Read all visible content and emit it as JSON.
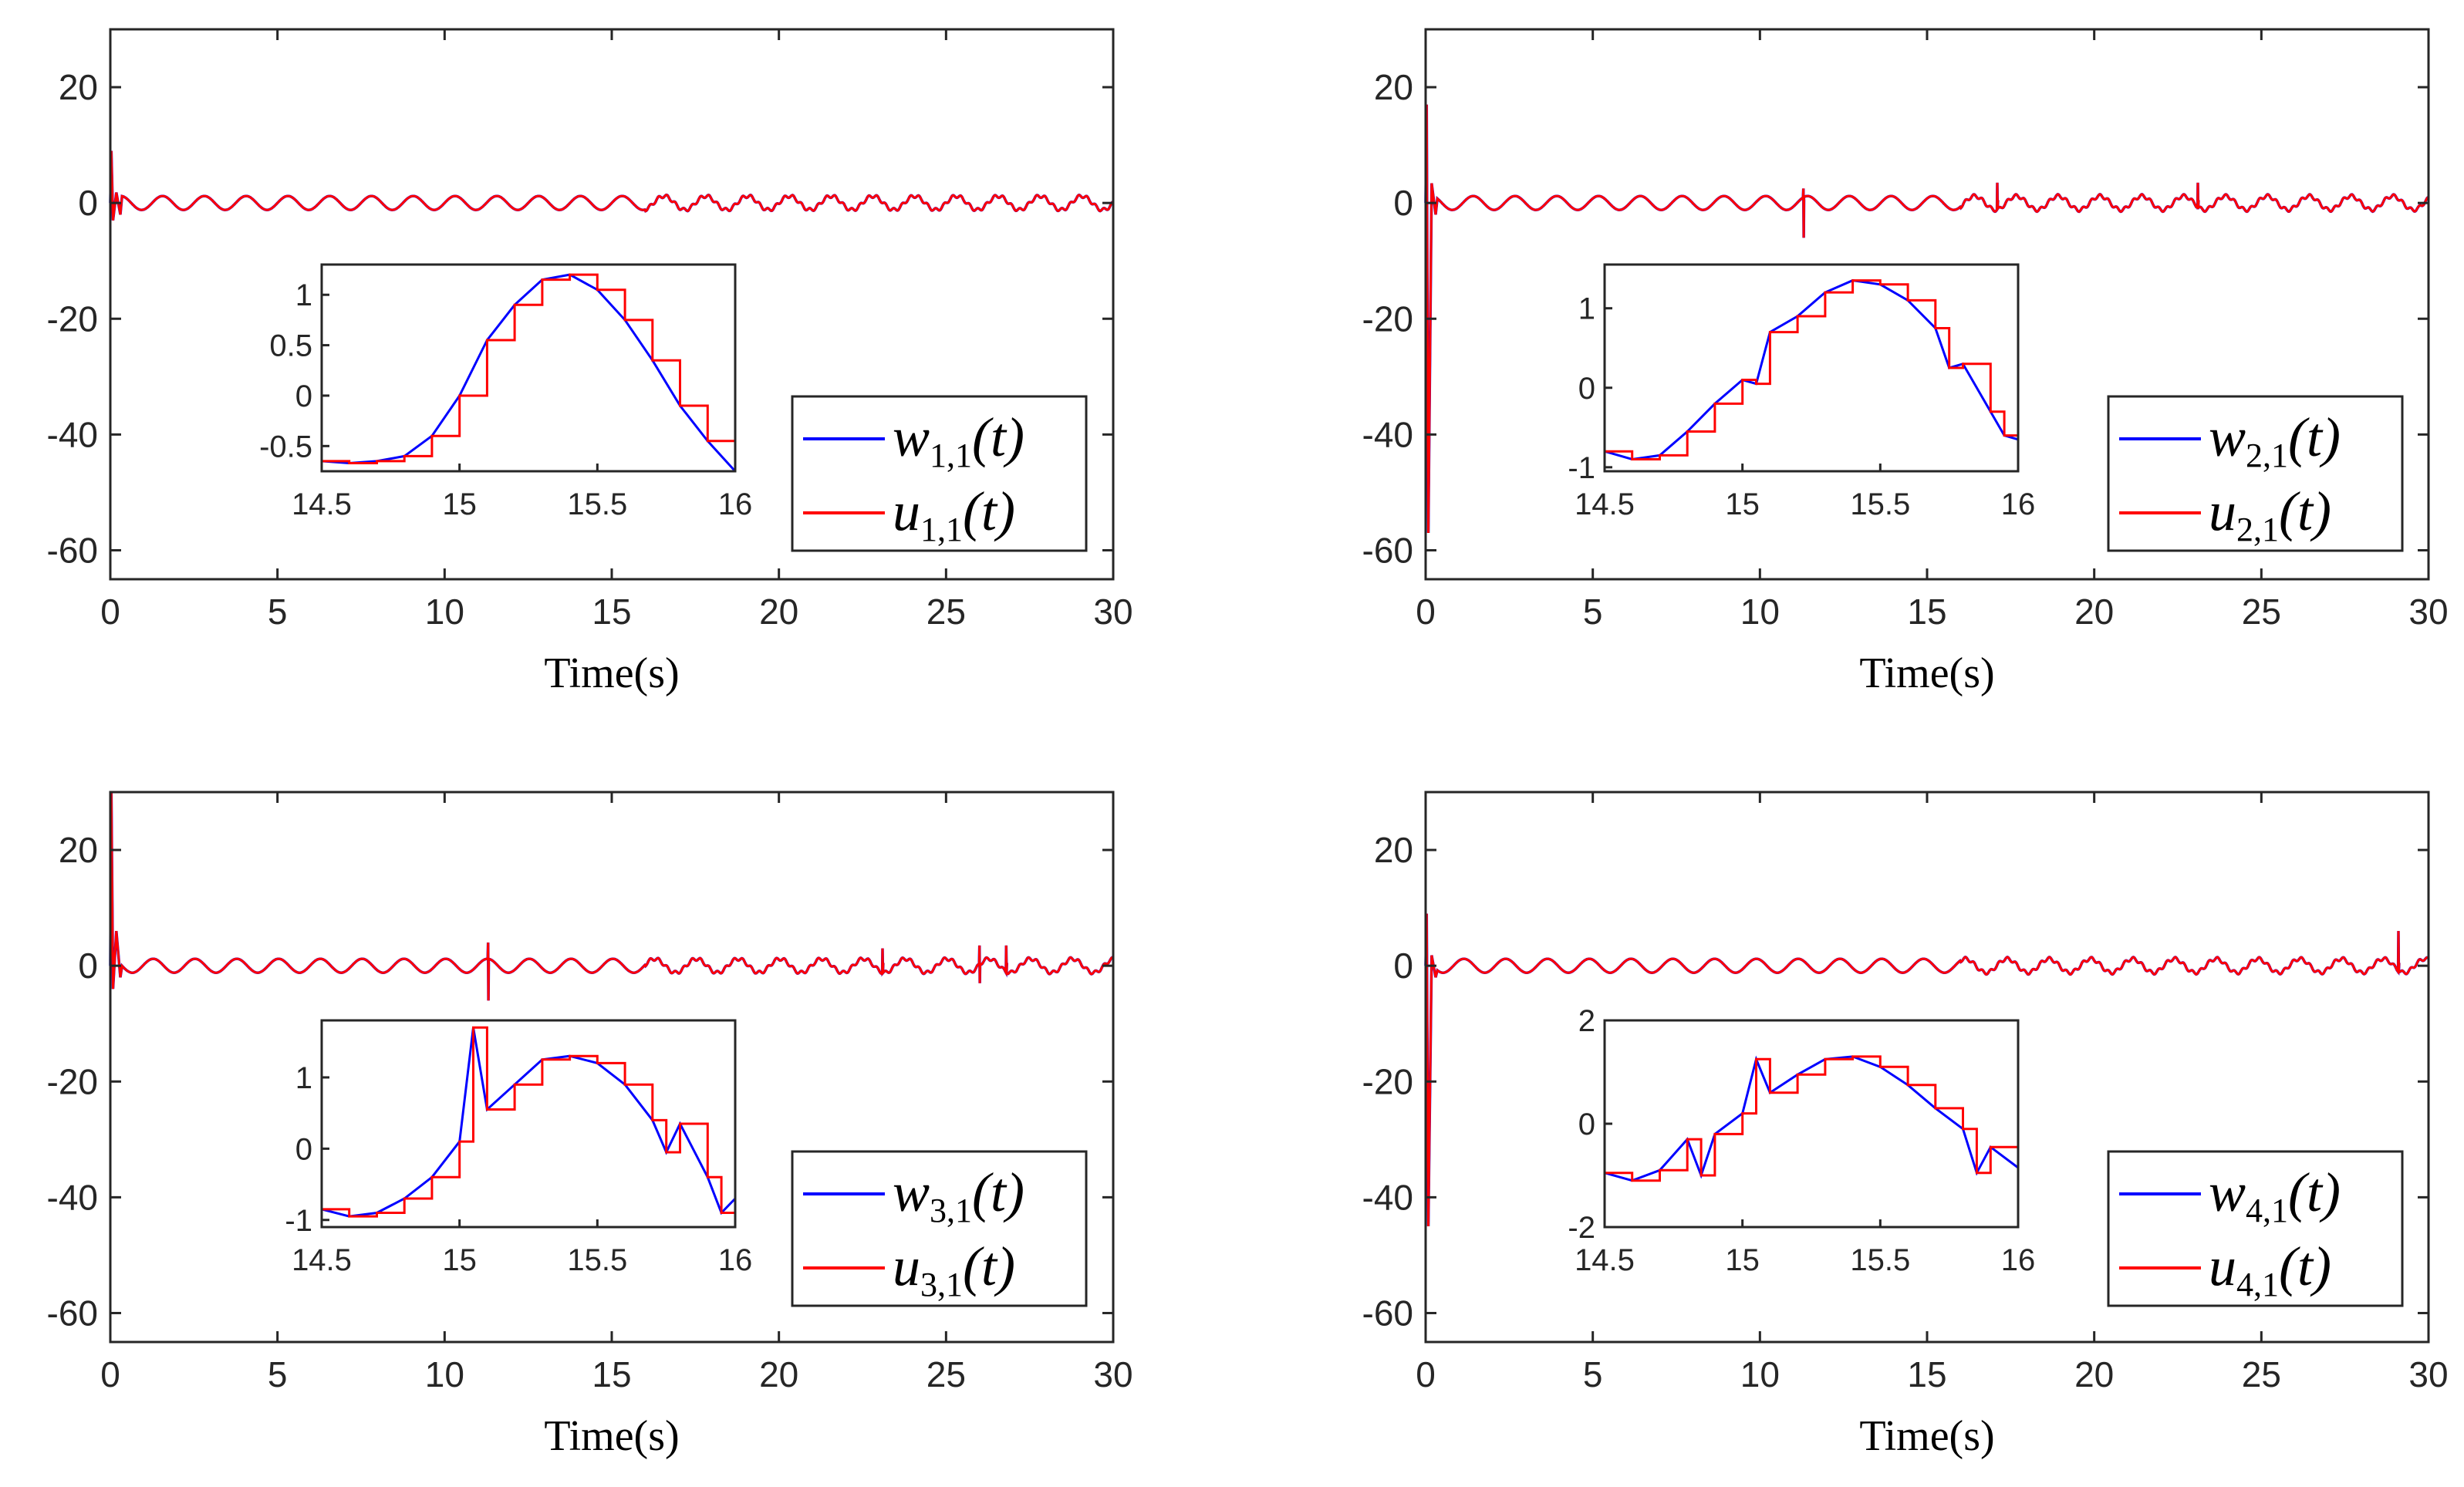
{
  "chart_data": [
    {
      "type": "line",
      "xlabel": "Time(s)",
      "xlim": [
        0,
        30
      ],
      "ylim": [
        -65,
        30
      ],
      "xticks": [
        "0",
        "5",
        "10",
        "15",
        "20",
        "25",
        "30"
      ],
      "yticks": [
        "-60",
        "-40",
        "-20",
        "0",
        "20"
      ],
      "series": [
        {
          "name": "w_{1,1}(t)",
          "color": "#0000ff",
          "legend_main": "w",
          "legend_sub": "1,1",
          "legend_tail": "(t)"
        },
        {
          "name": "u_{1,1}(t)",
          "color": "#ff0000",
          "legend_main": "u",
          "legend_sub": "1,1",
          "legend_tail": "(t)"
        }
      ],
      "spike_start": [
        9,
        -3
      ],
      "spikes": [],
      "inset": {
        "xlim": [
          14.5,
          16
        ],
        "ylim": [
          -0.75,
          1.3
        ],
        "xticks": [
          "14.5",
          "15",
          "15.5",
          "16"
        ],
        "yticks": [
          "-0.5",
          "0",
          "0.5",
          "1"
        ],
        "yticks_values": [
          -0.5,
          0,
          0.5,
          1
        ],
        "xticks_values": [
          14.5,
          15,
          15.5,
          16
        ],
        "points": [
          [
            14.5,
            -0.65
          ],
          [
            14.6,
            -0.67
          ],
          [
            14.7,
            -0.65
          ],
          [
            14.8,
            -0.6
          ],
          [
            14.9,
            -0.4
          ],
          [
            15.0,
            0.0
          ],
          [
            15.1,
            0.55
          ],
          [
            15.2,
            0.9
          ],
          [
            15.3,
            1.15
          ],
          [
            15.4,
            1.2
          ],
          [
            15.5,
            1.05
          ],
          [
            15.6,
            0.75
          ],
          [
            15.7,
            0.35
          ],
          [
            15.8,
            -0.1
          ],
          [
            15.9,
            -0.45
          ],
          [
            16.0,
            -0.75
          ]
        ]
      }
    },
    {
      "type": "line",
      "xlabel": "Time(s)",
      "xlim": [
        0,
        30
      ],
      "ylim": [
        -65,
        30
      ],
      "xticks": [
        "0",
        "5",
        "10",
        "15",
        "20",
        "25",
        "30"
      ],
      "yticks": [
        "-60",
        "-40",
        "-20",
        "0",
        "20"
      ],
      "series": [
        {
          "name": "w_{2,1}(t)",
          "color": "#0000ff",
          "legend_main": "w",
          "legend_sub": "2,1",
          "legend_tail": "(t)"
        },
        {
          "name": "u_{2,1}(t)",
          "color": "#ff0000",
          "legend_main": "u",
          "legend_sub": "2,1",
          "legend_tail": "(t)"
        }
      ],
      "spike_start": [
        17,
        -57
      ],
      "spikes": [
        [
          11.3,
          2.5,
          -6
        ],
        [
          17.1,
          3.5,
          -1
        ],
        [
          23.1,
          3.5,
          -1
        ]
      ],
      "inset": {
        "xlim": [
          14.5,
          16
        ],
        "ylim": [
          -1.05,
          1.55
        ],
        "xticks": [
          "14.5",
          "15",
          "15.5",
          "16"
        ],
        "yticks": [
          "-1",
          "0",
          "1"
        ],
        "yticks_values": [
          -1,
          0,
          1
        ],
        "xticks_values": [
          14.5,
          15,
          15.5,
          16
        ],
        "points": [
          [
            14.5,
            -0.8
          ],
          [
            14.6,
            -0.9
          ],
          [
            14.7,
            -0.85
          ],
          [
            14.8,
            -0.55
          ],
          [
            14.9,
            -0.2
          ],
          [
            15.0,
            0.1
          ],
          [
            15.05,
            0.05
          ],
          [
            15.1,
            0.7
          ],
          [
            15.2,
            0.9
          ],
          [
            15.3,
            1.2
          ],
          [
            15.4,
            1.35
          ],
          [
            15.5,
            1.3
          ],
          [
            15.6,
            1.1
          ],
          [
            15.7,
            0.75
          ],
          [
            15.75,
            0.25
          ],
          [
            15.8,
            0.3
          ],
          [
            15.9,
            -0.3
          ],
          [
            15.95,
            -0.6
          ],
          [
            16.0,
            -0.65
          ]
        ]
      }
    },
    {
      "type": "line",
      "xlabel": "Time(s)",
      "xlim": [
        0,
        30
      ],
      "ylim": [
        -65,
        30
      ],
      "xticks": [
        "0",
        "5",
        "10",
        "15",
        "20",
        "25",
        "30"
      ],
      "yticks": [
        "-60",
        "-40",
        "-20",
        "0",
        "20"
      ],
      "series": [
        {
          "name": "w_{3,1}(t)",
          "color": "#0000ff",
          "legend_main": "w",
          "legend_sub": "3,1",
          "legend_tail": "(t)"
        },
        {
          "name": "u_{3,1}(t)",
          "color": "#ff0000",
          "legend_main": "u",
          "legend_sub": "3,1",
          "legend_tail": "(t)"
        }
      ],
      "spike_start": [
        30,
        -4
      ],
      "spikes": [
        [
          11.3,
          4,
          -6
        ],
        [
          23.1,
          3,
          -1
        ],
        [
          26.0,
          3.5,
          -3
        ],
        [
          26.8,
          3.5,
          -1
        ]
      ],
      "inset": {
        "xlim": [
          14.5,
          16
        ],
        "ylim": [
          -1.1,
          1.8
        ],
        "xticks": [
          "14.5",
          "15",
          "15.5",
          "16"
        ],
        "yticks": [
          "-1",
          "0",
          "1"
        ],
        "yticks_values": [
          -1,
          0,
          1
        ],
        "xticks_values": [
          14.5,
          15,
          15.5,
          16
        ],
        "points": [
          [
            14.5,
            -0.85
          ],
          [
            14.6,
            -0.95
          ],
          [
            14.7,
            -0.9
          ],
          [
            14.8,
            -0.7
          ],
          [
            14.9,
            -0.4
          ],
          [
            15.0,
            0.1
          ],
          [
            15.05,
            1.7
          ],
          [
            15.1,
            0.55
          ],
          [
            15.2,
            0.9
          ],
          [
            15.3,
            1.25
          ],
          [
            15.4,
            1.3
          ],
          [
            15.5,
            1.2
          ],
          [
            15.6,
            0.9
          ],
          [
            15.7,
            0.4
          ],
          [
            15.75,
            -0.05
          ],
          [
            15.8,
            0.35
          ],
          [
            15.9,
            -0.4
          ],
          [
            15.95,
            -0.9
          ],
          [
            16.0,
            -0.7
          ]
        ]
      }
    },
    {
      "type": "line",
      "xlabel": "Time(s)",
      "xlim": [
        0,
        30
      ],
      "ylim": [
        -65,
        30
      ],
      "xticks": [
        "0",
        "5",
        "10",
        "15",
        "20",
        "25",
        "30"
      ],
      "yticks": [
        "-60",
        "-40",
        "-20",
        "0",
        "20"
      ],
      "series": [
        {
          "name": "w_{4,1}(t)",
          "color": "#0000ff",
          "legend_main": "w",
          "legend_sub": "4,1",
          "legend_tail": "(t)"
        },
        {
          "name": "u_{4,1}(t)",
          "color": "#ff0000",
          "legend_main": "u",
          "legend_sub": "4,1",
          "legend_tail": "(t)"
        }
      ],
      "spike_start": [
        9,
        -45
      ],
      "spikes": [
        [
          29.1,
          6,
          -1
        ]
      ],
      "inset": {
        "xlim": [
          14.5,
          16
        ],
        "ylim": [
          -2,
          2
        ],
        "xticks": [
          "14.5",
          "15",
          "15.5",
          "16"
        ],
        "yticks": [
          "-2",
          "0",
          "2"
        ],
        "yticks_values": [
          -2,
          0,
          2
        ],
        "xticks_values": [
          14.5,
          15,
          15.5,
          16
        ],
        "points": [
          [
            14.5,
            -0.95
          ],
          [
            14.6,
            -1.1
          ],
          [
            14.7,
            -0.9
          ],
          [
            14.8,
            -0.3
          ],
          [
            14.85,
            -1.0
          ],
          [
            14.9,
            -0.2
          ],
          [
            15.0,
            0.2
          ],
          [
            15.05,
            1.25
          ],
          [
            15.1,
            0.6
          ],
          [
            15.2,
            0.95
          ],
          [
            15.3,
            1.25
          ],
          [
            15.4,
            1.3
          ],
          [
            15.5,
            1.1
          ],
          [
            15.6,
            0.75
          ],
          [
            15.7,
            0.3
          ],
          [
            15.8,
            -0.1
          ],
          [
            15.85,
            -0.95
          ],
          [
            15.9,
            -0.45
          ],
          [
            16.0,
            -0.85
          ]
        ]
      }
    }
  ]
}
